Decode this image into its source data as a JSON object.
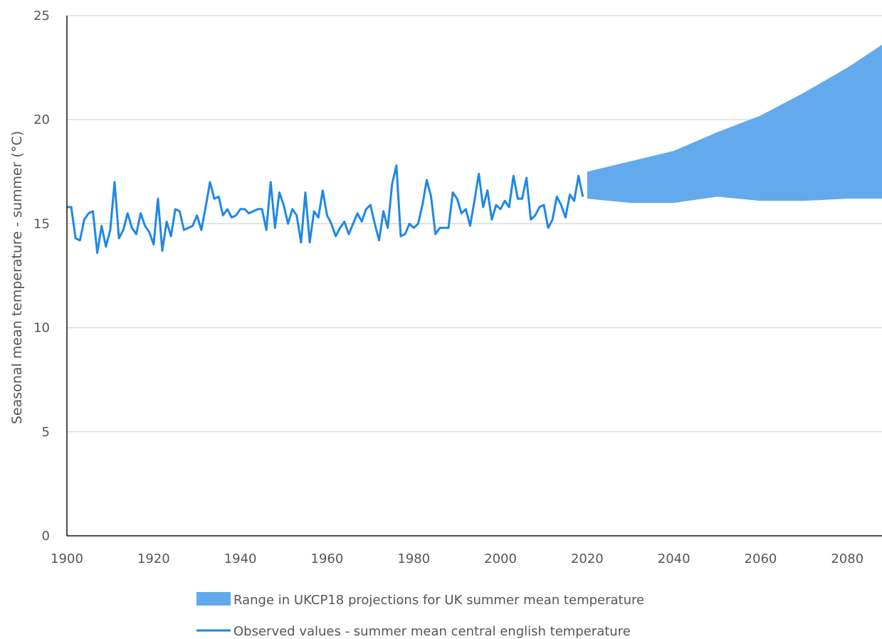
{
  "chart_data": {
    "type": "line",
    "xlabel": "",
    "ylabel": "Seasonal mean temperature - summer (°C)",
    "xlim": [
      1900,
      2088
    ],
    "ylim": [
      0,
      25
    ],
    "x_ticks": [
      1900,
      1920,
      1940,
      1960,
      1980,
      2000,
      2020,
      2040,
      2060,
      2080
    ],
    "y_ticks": [
      0,
      5,
      10,
      15,
      20,
      25
    ],
    "grid": true,
    "legend_position": "bottom",
    "colors": {
      "band": "#62aaec",
      "line": "#1e88e5"
    },
    "series": [
      {
        "name": "Range in UKCP18 projections for UK summer mean temperature",
        "kind": "range",
        "x": [
          2020,
          2030,
          2040,
          2050,
          2060,
          2070,
          2080,
          2088
        ],
        "lower": [
          16.2,
          16.0,
          16.0,
          16.3,
          16.1,
          16.1,
          16.2,
          16.2
        ],
        "upper": [
          17.5,
          18.0,
          18.5,
          19.4,
          20.2,
          21.3,
          22.5,
          23.6
        ]
      },
      {
        "name": "Observed values - summer mean central english temperature",
        "kind": "line",
        "x": [
          1900,
          1901,
          1902,
          1903,
          1904,
          1905,
          1906,
          1907,
          1908,
          1909,
          1910,
          1911,
          1912,
          1913,
          1914,
          1915,
          1916,
          1917,
          1918,
          1919,
          1920,
          1921,
          1922,
          1923,
          1924,
          1925,
          1926,
          1927,
          1928,
          1929,
          1930,
          1931,
          1932,
          1933,
          1934,
          1935,
          1936,
          1937,
          1938,
          1939,
          1940,
          1941,
          1942,
          1943,
          1944,
          1945,
          1946,
          1947,
          1948,
          1949,
          1950,
          1951,
          1952,
          1953,
          1954,
          1955,
          1956,
          1957,
          1958,
          1959,
          1960,
          1961,
          1962,
          1963,
          1964,
          1965,
          1966,
          1967,
          1968,
          1969,
          1970,
          1971,
          1972,
          1973,
          1974,
          1975,
          1976,
          1977,
          1978,
          1979,
          1980,
          1981,
          1982,
          1983,
          1984,
          1985,
          1986,
          1987,
          1988,
          1989,
          1990,
          1991,
          1992,
          1993,
          1994,
          1995,
          1996,
          1997,
          1998,
          1999,
          2000,
          2001,
          2002,
          2003,
          2004,
          2005,
          2006,
          2007,
          2008,
          2009,
          2010,
          2011,
          2012,
          2013,
          2014,
          2015,
          2016,
          2017,
          2018,
          2019
        ],
        "y": [
          15.8,
          15.8,
          14.3,
          14.2,
          15.2,
          15.5,
          15.6,
          13.6,
          14.9,
          13.9,
          14.7,
          17.0,
          14.3,
          14.7,
          15.5,
          14.8,
          14.5,
          15.5,
          14.9,
          14.6,
          14.0,
          16.2,
          13.7,
          15.1,
          14.4,
          15.7,
          15.6,
          14.7,
          14.8,
          14.9,
          15.4,
          14.7,
          15.8,
          17.0,
          16.2,
          16.3,
          15.4,
          15.7,
          15.3,
          15.4,
          15.7,
          15.7,
          15.5,
          15.6,
          15.7,
          15.7,
          14.7,
          17.0,
          14.8,
          16.5,
          15.9,
          15.0,
          15.7,
          15.4,
          14.1,
          16.5,
          14.1,
          15.6,
          15.3,
          16.6,
          15.4,
          15.0,
          14.4,
          14.8,
          15.1,
          14.5,
          15.0,
          15.5,
          15.1,
          15.7,
          15.9,
          15.0,
          14.2,
          15.6,
          14.8,
          16.9,
          17.8,
          14.4,
          14.5,
          15.0,
          14.8,
          15.0,
          15.9,
          17.1,
          16.3,
          14.5,
          14.8,
          14.8,
          14.8,
          16.5,
          16.2,
          15.5,
          15.7,
          14.9,
          16.1,
          17.4,
          15.8,
          16.6,
          15.2,
          15.9,
          15.7,
          16.1,
          15.8,
          17.3,
          16.2,
          16.2,
          17.2,
          15.2,
          15.4,
          15.8,
          15.9,
          14.8,
          15.2,
          16.3,
          15.9,
          15.3,
          16.4,
          16.1,
          17.3,
          16.3
        ]
      }
    ]
  }
}
